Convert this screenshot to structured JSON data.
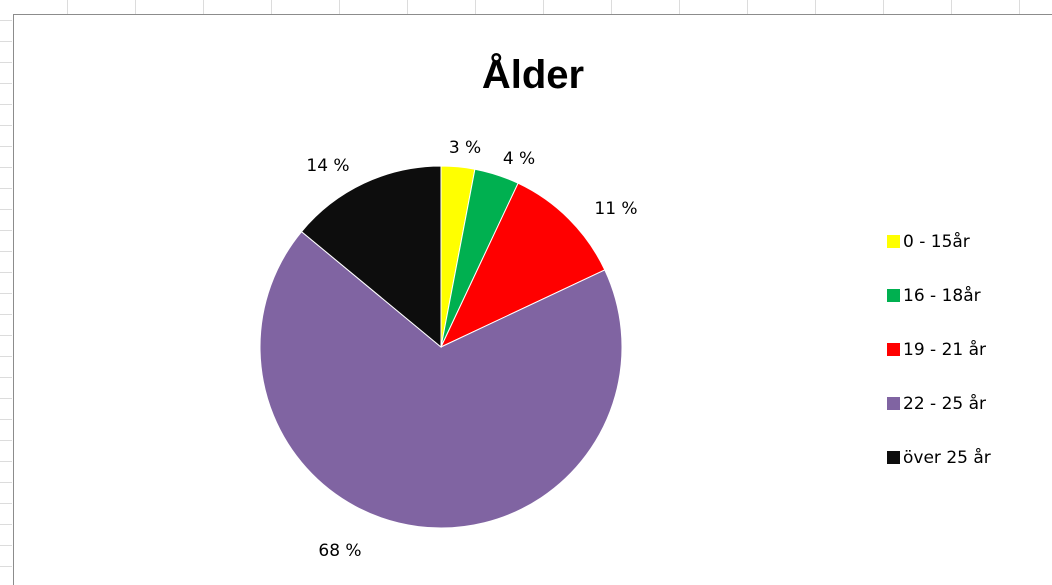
{
  "chart_data": {
    "type": "pie",
    "title": "Ålder",
    "categories": [
      "0 - 15år",
      "16 - 18år",
      "19 - 21 år",
      "22 - 25 år",
      "över 25 år"
    ],
    "values": [
      3,
      4,
      11,
      68,
      14
    ],
    "data_labels": [
      "3 %",
      "4 %",
      "11 %",
      "68 %",
      "14 %"
    ],
    "colors": [
      "#ffff00",
      "#00b050",
      "#ff0000",
      "#8064a2",
      "#0d0d0d"
    ],
    "start_angle_deg": 0,
    "direction": "clockwise",
    "legend_position": "right"
  }
}
